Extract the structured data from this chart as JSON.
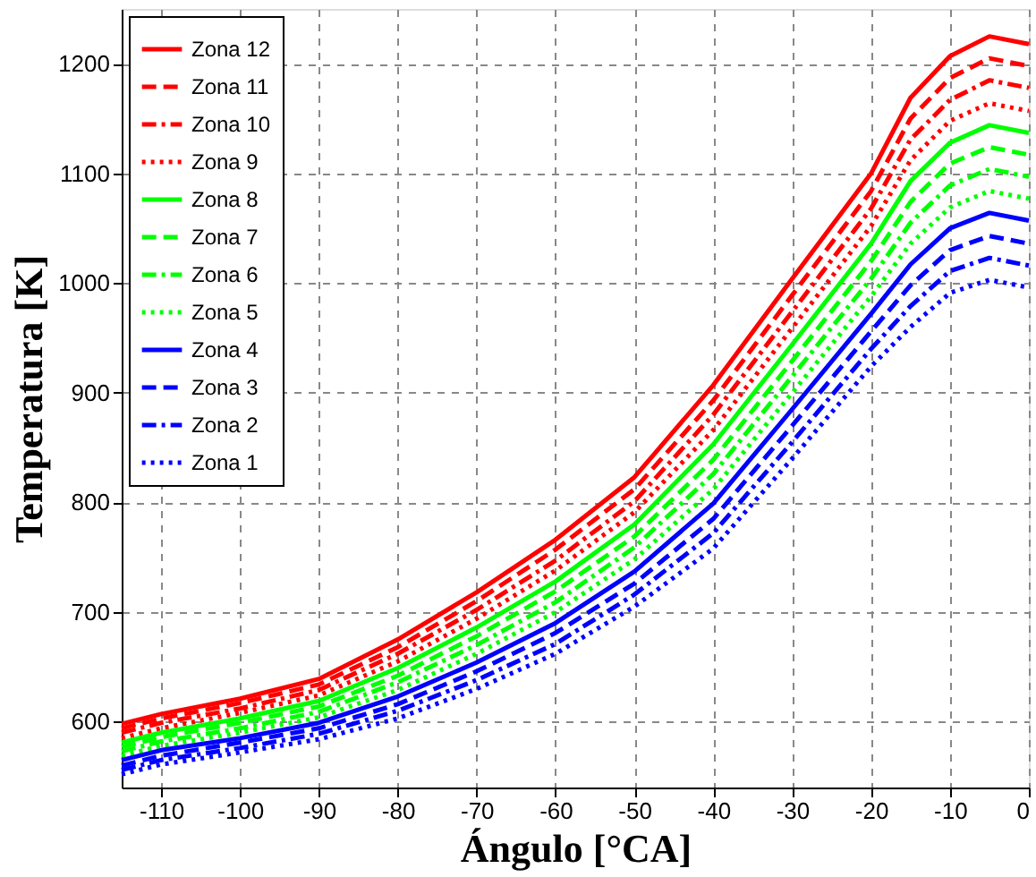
{
  "chart_data": {
    "type": "line",
    "xlabel": "Ángulo [°CA]",
    "ylabel": "Temperatura [K]",
    "x": [
      -115,
      -110,
      -100,
      -90,
      -80,
      -70,
      -60,
      -50,
      -40,
      -30,
      -20,
      -15,
      -10,
      -5,
      0
    ],
    "xlim": [
      -115,
      0
    ],
    "xticks": [
      -110,
      -100,
      -90,
      -80,
      -70,
      -60,
      -50,
      -40,
      -30,
      -20,
      -10,
      0
    ],
    "ylim": [
      540,
      1250
    ],
    "yticks": [
      600,
      700,
      800,
      900,
      1000,
      1100,
      1200
    ],
    "grid": true,
    "legend": "top left",
    "marker": "none",
    "series": [
      {
        "name": "Zona 12",
        "color": "#ff0000",
        "line_style": "solid",
        "values": [
          598,
          607,
          621,
          639,
          675,
          718,
          766,
          823,
          907,
          1004,
          1100,
          1169,
          1207,
          1225,
          1218
        ]
      },
      {
        "name": "Zona 11",
        "color": "#ff0000",
        "line_style": "dashed",
        "values": [
          594,
          603,
          617,
          634,
          668,
          710,
          757,
          812,
          893,
          989,
          1084,
          1150,
          1187,
          1205,
          1198
        ]
      },
      {
        "name": "Zona 10",
        "color": "#ff0000",
        "line_style": "dashdot",
        "values": [
          590,
          599,
          612,
          629,
          662,
          702,
          747,
          801,
          880,
          974,
          1068,
          1131,
          1167,
          1185,
          1178
        ]
      },
      {
        "name": "Zona 9",
        "color": "#ff0000",
        "line_style": "dotted",
        "values": [
          585,
          594,
          608,
          624,
          655,
          694,
          738,
          791,
          866,
          959,
          1052,
          1112,
          1148,
          1164,
          1157
        ]
      },
      {
        "name": "Zona 8",
        "color": "#00ff00",
        "line_style": "solid",
        "values": [
          581,
          590,
          603,
          619,
          649,
          686,
          728,
          780,
          853,
          944,
          1036,
          1093,
          1128,
          1144,
          1137
        ]
      },
      {
        "name": "Zona 7",
        "color": "#00ff00",
        "line_style": "dashed",
        "values": [
          577,
          586,
          599,
          614,
          642,
          678,
          719,
          769,
          839,
          929,
          1020,
          1074,
          1109,
          1124,
          1117
        ]
      },
      {
        "name": "Zona 6",
        "color": "#00ff00",
        "line_style": "dashdot",
        "values": [
          573,
          582,
          594,
          609,
          636,
          670,
          709,
          759,
          826,
          915,
          1004,
          1055,
          1089,
          1104,
          1097
        ]
      },
      {
        "name": "Zona 5",
        "color": "#00ff00",
        "line_style": "dotted",
        "values": [
          569,
          578,
          590,
          604,
          629,
          662,
          700,
          748,
          812,
          900,
          988,
          1036,
          1069,
          1084,
          1077
        ]
      },
      {
        "name": "Zona 4",
        "color": "#0000ff",
        "line_style": "solid",
        "values": [
          565,
          574,
          585,
          599,
          623,
          654,
          690,
          737,
          799,
          885,
          972,
          1017,
          1050,
          1064,
          1057
        ]
      },
      {
        "name": "Zona 3",
        "color": "#0000ff",
        "line_style": "dashed",
        "values": [
          560,
          569,
          581,
          594,
          616,
          646,
          681,
          726,
          785,
          870,
          956,
          998,
          1030,
          1043,
          1036
        ]
      },
      {
        "name": "Zona 2",
        "color": "#0000ff",
        "line_style": "dashdot",
        "values": [
          556,
          565,
          576,
          589,
          610,
          638,
          671,
          716,
          772,
          855,
          940,
          979,
          1011,
          1023,
          1016
        ]
      },
      {
        "name": "Zona 1",
        "color": "#0000ff",
        "line_style": "dotted",
        "values": [
          552,
          561,
          572,
          584,
          603,
          630,
          662,
          705,
          758,
          840,
          924,
          960,
          991,
          1003,
          996
        ]
      }
    ]
  }
}
